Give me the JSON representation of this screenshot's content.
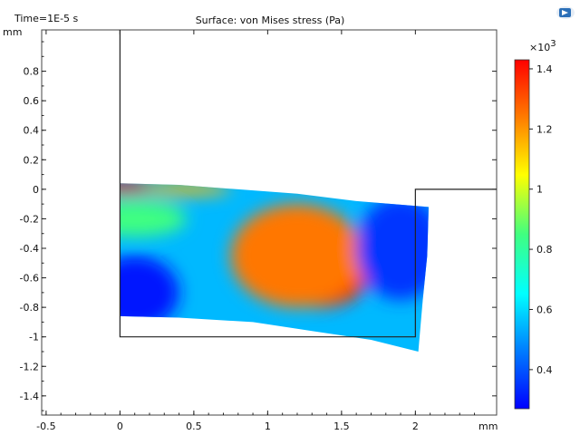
{
  "header": {
    "time_label": "Time=1E-5 s",
    "title": "Surface: von Mises stress (Pa)"
  },
  "app_icon": "comsol-app-icon",
  "chart_data": {
    "type": "heatmap",
    "title": "Surface: von Mises stress (Pa)",
    "time_label": "Time=1E-5 s",
    "x_unit": "mm",
    "y_unit": "mm",
    "xlim": [
      -0.53,
      2.55
    ],
    "ylim": [
      -1.53,
      1.08
    ],
    "x_ticks": [
      -0.5,
      0,
      0.5,
      1,
      1.5,
      2
    ],
    "x_tick_labels": [
      "-0.5",
      "0",
      "0.5",
      "1",
      "1.5",
      "2"
    ],
    "y_ticks": [
      0.8,
      0.6,
      0.4,
      0.2,
      0,
      -0.2,
      -0.4,
      -0.6,
      -0.8,
      -1,
      -1.2,
      -1.4
    ],
    "y_tick_labels": [
      "0.8",
      "0.6",
      "0.4",
      "0.2",
      "0",
      "-0.2",
      "-0.4",
      "-0.6",
      "-0.8",
      "-1",
      "-1.2",
      "-1.4"
    ],
    "colorbar": {
      "exponent_label": "×10",
      "exponent_power": "3",
      "range": [
        0.27,
        1.43
      ],
      "ticks": [
        1.4,
        1.2,
        1,
        0.8,
        0.6,
        0.4
      ],
      "tick_labels": [
        "1.4",
        "1.2",
        "1",
        "0.8",
        "0.6",
        "0.4"
      ],
      "colormap": "rainbow",
      "colors": [
        "#0000ff",
        "#0080ff",
        "#00ffff",
        "#40ff80",
        "#ffff00",
        "#ff8000",
        "#ff0000"
      ]
    },
    "undeformed_geometry": [
      [
        [
          0,
          1.08
        ],
        [
          0,
          -1
        ],
        [
          2,
          -1
        ],
        [
          2,
          0
        ],
        [
          2.55,
          0
        ]
      ]
    ],
    "deformed_shape": [
      [
        0,
        0.04
      ],
      [
        0.4,
        0.03
      ],
      [
        0.8,
        0.0
      ],
      [
        1.2,
        -0.03
      ],
      [
        1.6,
        -0.08
      ],
      [
        2.09,
        -0.12
      ],
      [
        2.08,
        -0.45
      ],
      [
        2.05,
        -0.75
      ],
      [
        2.02,
        -1.1
      ],
      [
        1.7,
        -1.02
      ],
      [
        1.3,
        -0.96
      ],
      [
        0.9,
        -0.9
      ],
      [
        0.4,
        -0.87
      ],
      [
        0,
        -0.86
      ]
    ],
    "stress_field": {
      "value_unit": "kPa",
      "background": 0.55,
      "hotspots": [
        {
          "x": 0.0,
          "y": 0.01,
          "value": 1.4,
          "rx": 0.35,
          "ry": 0.04
        },
        {
          "x": 0.45,
          "y": 0.0,
          "value": 1.15,
          "rx": 0.3,
          "ry": 0.04
        },
        {
          "x": 1.35,
          "y": -0.6,
          "value": 1.43,
          "rx": 0.32,
          "ry": 0.2
        },
        {
          "x": 1.2,
          "y": -0.45,
          "value": 1.25,
          "rx": 0.45,
          "ry": 0.35
        },
        {
          "x": 1.9,
          "y": -0.4,
          "value": 0.35,
          "rx": 0.3,
          "ry": 0.35
        },
        {
          "x": 0.1,
          "y": -0.7,
          "value": 0.3,
          "rx": 0.3,
          "ry": 0.25
        },
        {
          "x": 0.1,
          "y": -0.2,
          "value": 0.85,
          "rx": 0.35,
          "ry": 0.12
        }
      ]
    }
  }
}
